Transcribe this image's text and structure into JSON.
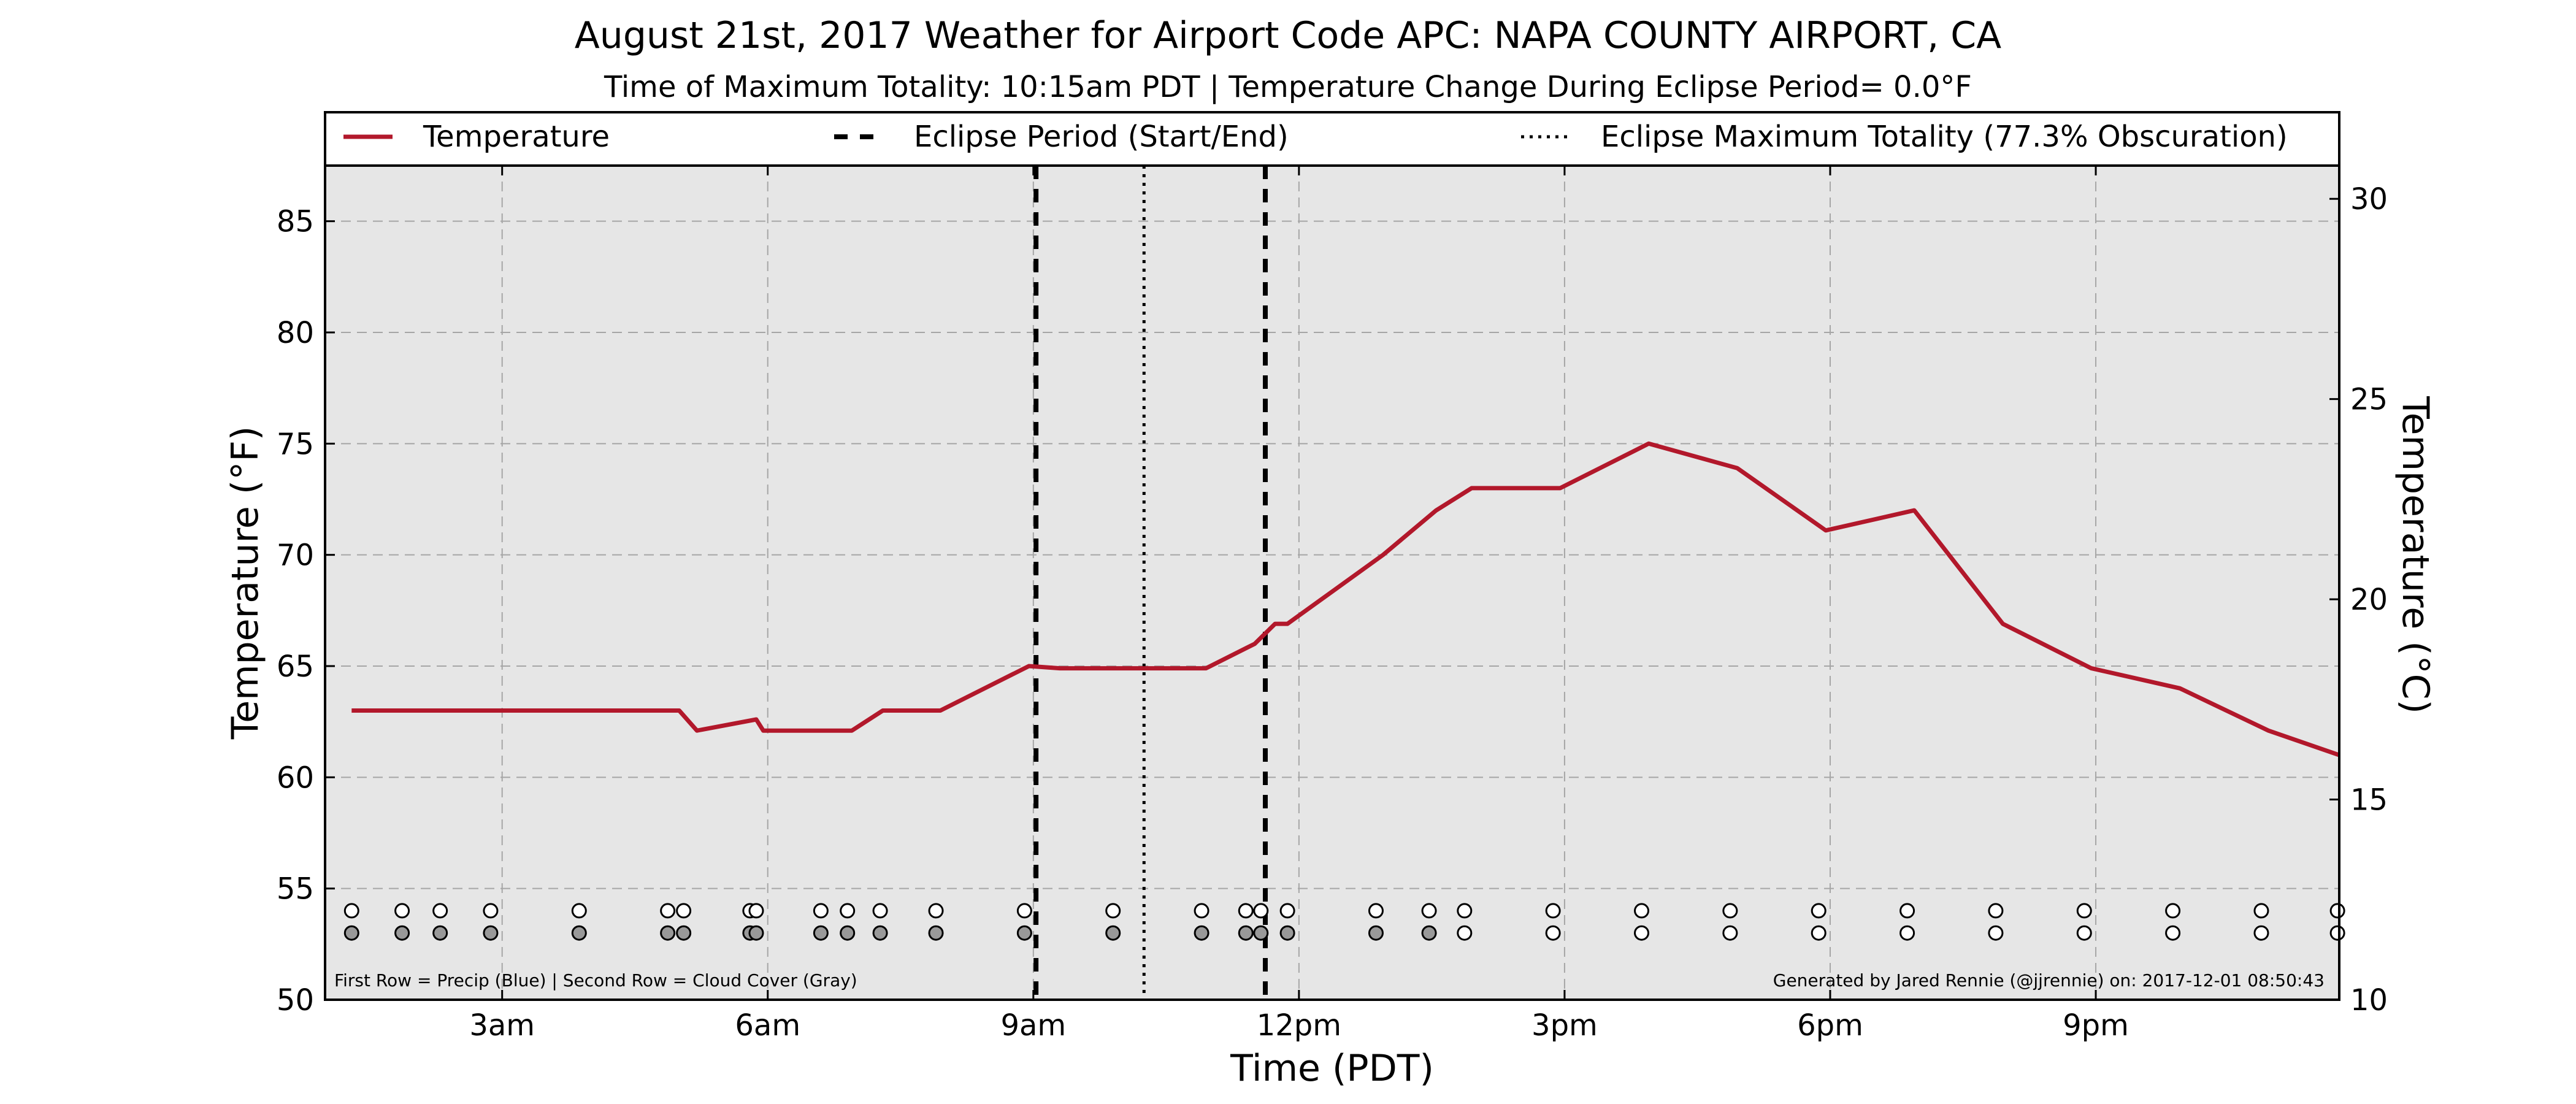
{
  "chart_data": {
    "type": "line",
    "title": "August 21st, 2017 Weather for Airport Code APC: NAPA COUNTY AIRPORT, CA",
    "subtitle": "Time of Maximum Totality: 10:15am PDT | Temperature Change During Eclipse Period= 0.0°F",
    "xlabel": "Time (PDT)",
    "ylabel_left": "Temperature (°F)",
    "ylabel_right": "Temperature (°C)",
    "xlim": [
      1.0,
      23.75
    ],
    "ylim_left": [
      50,
      87.5
    ],
    "ylim_right": [
      10,
      30.83
    ],
    "x_ticks": [
      3,
      6,
      9,
      12,
      15,
      18,
      21
    ],
    "x_tick_labels": [
      "3am",
      "6am",
      "9am",
      "12pm",
      "3pm",
      "6pm",
      "9pm"
    ],
    "y_ticks_left": [
      50,
      55,
      60,
      65,
      70,
      75,
      80,
      85
    ],
    "y_tick_labels_left": [
      "50",
      "55",
      "60",
      "65",
      "70",
      "75",
      "80",
      "85"
    ],
    "y_ticks_right": [
      10,
      15,
      20,
      25,
      30
    ],
    "y_tick_labels_right": [
      "10",
      "15",
      "20",
      "25",
      "30"
    ],
    "grid": true,
    "legend": {
      "placement": "top",
      "entries": [
        {
          "label": "Temperature",
          "style": "solid",
          "color": "#b2182b"
        },
        {
          "label": "Eclipse Period (Start/End)",
          "style": "dashed",
          "color": "#000000"
        },
        {
          "label": "Eclipse Maximum Totality (77.3% Obscuration)",
          "style": "dotted",
          "color": "#000000"
        }
      ]
    },
    "series": [
      {
        "name": "Temperature",
        "color": "#b2182b",
        "x": [
          1.3,
          2.0,
          3.0,
          4.0,
          5.0,
          5.2,
          5.87,
          5.95,
          6.0,
          6.5,
          6.95,
          7.3,
          7.95,
          8.95,
          9.3,
          9.95,
          10.3,
          10.95,
          11.5,
          11.73,
          11.87,
          12.95,
          13.55,
          13.95,
          14.95,
          15.95,
          16.95,
          17.95,
          18.95,
          19.95,
          20.95,
          21.95,
          22.95,
          23.75
        ],
        "y": [
          63,
          63,
          63,
          63,
          63,
          62.1,
          62.6,
          62.1,
          62.1,
          62.1,
          62.1,
          63,
          63,
          65,
          64.9,
          64.9,
          64.9,
          64.9,
          66,
          66.9,
          66.9,
          70,
          72,
          73,
          73,
          75,
          73.9,
          71.1,
          72,
          66.9,
          64.9,
          64,
          62.1,
          61
        ]
      }
    ],
    "eclipse_start": 9.03,
    "eclipse_end": 11.62,
    "eclipse_max": 10.25,
    "obs_times": [
      1.3,
      1.87,
      2.3,
      2.87,
      3.87,
      4.87,
      5.05,
      5.8,
      5.87,
      6.6,
      6.9,
      7.27,
      7.9,
      8.9,
      9.9,
      10.9,
      11.4,
      11.57,
      11.87,
      12.87,
      13.47,
      13.87,
      14.87,
      15.87,
      16.87,
      17.87,
      18.87,
      19.87,
      20.87,
      21.87,
      22.87,
      23.73
    ],
    "cloud_gray": [
      1,
      1,
      1,
      1,
      1,
      1,
      1,
      1,
      1,
      1,
      1,
      1,
      1,
      1,
      1,
      1,
      1,
      1,
      1,
      1,
      1,
      0,
      0,
      0,
      0,
      0,
      0,
      0,
      0,
      0,
      0,
      0
    ],
    "precip_y": 54,
    "cloud_y": 53,
    "annotation_left": "First Row = Precip (Blue) | Second Row = Cloud Cover (Gray)",
    "annotation_right": "Generated by Jared Rennie (@jjrennie) on: 2017-12-01 08:50:43"
  }
}
